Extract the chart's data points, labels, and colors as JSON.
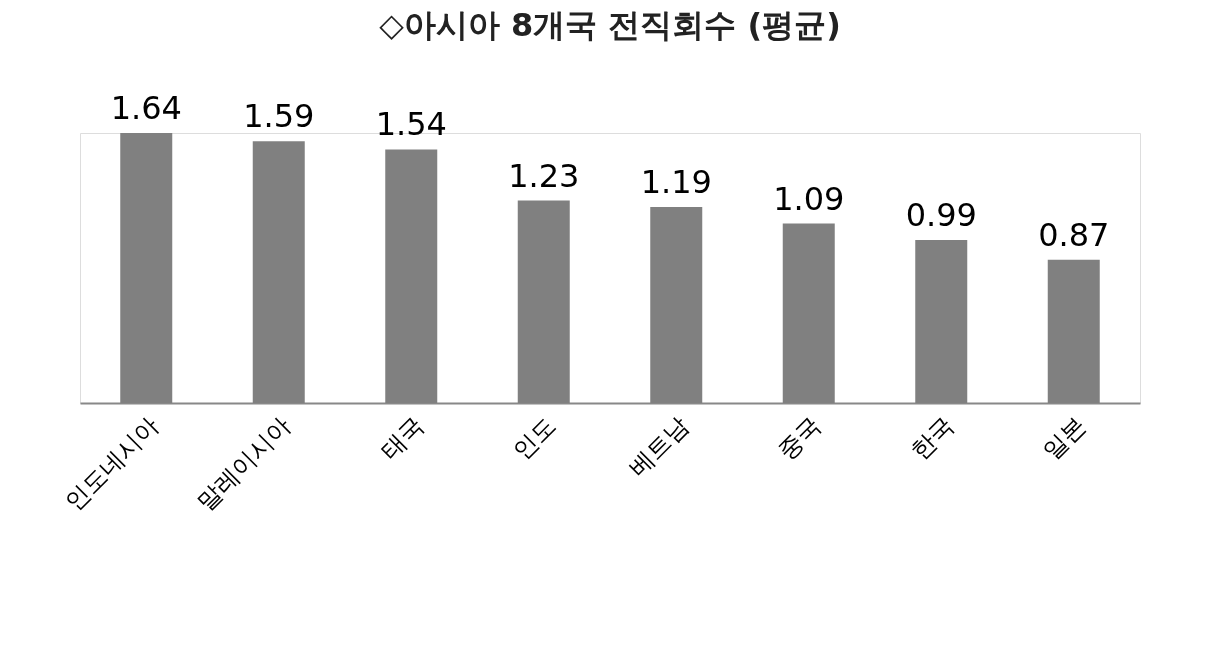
{
  "chart_data": {
    "type": "bar",
    "title": "◇아시아 8개국 전직회수 (평균)",
    "categories": [
      "인도네시아",
      "말레이시아",
      "태국",
      "인도",
      "베트남",
      "중국",
      "한국",
      "일본"
    ],
    "values": [
      1.64,
      1.59,
      1.54,
      1.23,
      1.19,
      1.09,
      0.99,
      0.87
    ],
    "color": "#808080",
    "data_labels": true,
    "grid": false
  }
}
